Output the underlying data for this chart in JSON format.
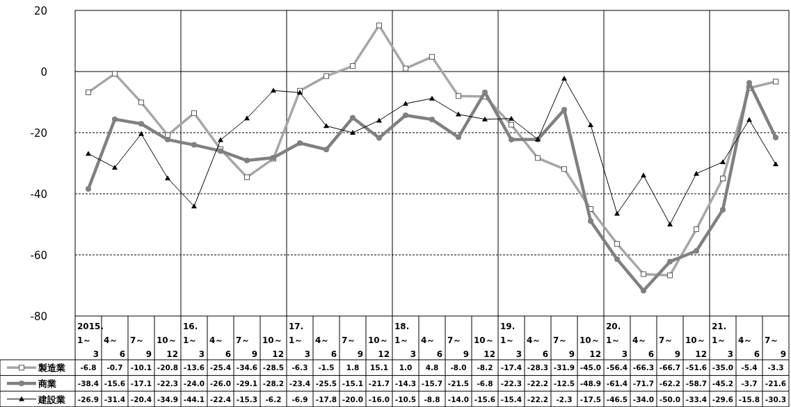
{
  "chart_data": {
    "type": "line",
    "categories": [
      "2015.\n1～\n3",
      "4～\n6",
      "7～\n9",
      "10～\n12",
      "16.\n1～\n3",
      "4～\n6",
      "7～\n9",
      "10～\n12",
      "17.\n1～\n3",
      "4～\n6",
      "7～\n9",
      "10～\n12",
      "18.\n1～\n3",
      "4～\n6",
      "7～\n9",
      "10～\n12",
      "19.\n1～\n3",
      "4～\n6",
      "7～\n9",
      "10～\n12",
      "20.\n1～\n3",
      "4～\n6",
      "7～\n9",
      "10～\n12",
      "21.\n1～\n3",
      "4～\n6",
      "7～\n9"
    ],
    "series": [
      {
        "name": "製造業",
        "color": "#a6a6a6",
        "marker": "square",
        "values": [
          -6.8,
          -0.7,
          -10.1,
          -20.8,
          -13.6,
          -25.4,
          -34.6,
          -28.5,
          -6.3,
          -1.5,
          1.8,
          15.1,
          1.0,
          4.8,
          -8.0,
          -8.2,
          -17.4,
          -28.3,
          -31.9,
          -45.0,
          -56.4,
          -66.3,
          -66.7,
          -51.6,
          -35.0,
          -5.4,
          -3.3
        ],
        "value_labels": [
          "-6.8",
          "-0.7",
          "-10.1",
          "-20.8",
          "-13.6",
          "-25.4",
          "-34.6",
          "-28.5",
          "-6.3",
          "-1.5",
          "1.8",
          "15.1",
          "1.0",
          "4.8",
          "-8.0",
          "-8.2",
          "-17.4",
          "-28.3",
          "-31.9",
          "-45.0",
          "-56.4",
          "-66.3",
          "-66.7",
          "-51.6",
          "-35.0",
          "-5.4",
          "-3.3"
        ]
      },
      {
        "name": "商業",
        "color": "#808080",
        "marker": "circle",
        "values": [
          -38.4,
          -15.6,
          -17.1,
          -22.3,
          -24.0,
          -26.0,
          -29.1,
          -28.2,
          -23.4,
          -25.5,
          -15.1,
          -21.7,
          -14.3,
          -15.7,
          -21.5,
          -6.8,
          -22.3,
          -22.2,
          -12.5,
          -48.9,
          -61.4,
          -71.7,
          -62.2,
          -58.7,
          -45.2,
          -3.7,
          -21.6
        ],
        "value_labels": [
          "-38.4",
          "-15.6",
          "-17.1",
          "-22.3",
          "-24.0",
          "-26.0",
          "-29.1",
          "-28.2",
          "-23.4",
          "-25.5",
          "-15.1",
          "-21.7",
          "-14.3",
          "-15.7",
          "-21.5",
          "-6.8",
          "-22.3",
          "-22.2",
          "-12.5",
          "-48.9",
          "-61.4",
          "-71.7",
          "-62.2",
          "-58.7",
          "-45.2",
          "-3.7",
          "-21.6"
        ]
      },
      {
        "name": "建設業",
        "color": "#000000",
        "marker": "triangle",
        "values": [
          -26.9,
          -31.4,
          -20.4,
          -34.9,
          -44.1,
          -22.4,
          -15.3,
          -6.2,
          -6.9,
          -17.8,
          -20.0,
          -16.0,
          -10.5,
          -8.8,
          -14.0,
          -15.6,
          -15.4,
          -22.2,
          -2.3,
          -17.5,
          -46.5,
          -34.0,
          -50.0,
          -33.4,
          -29.6,
          -15.8,
          -30.3
        ],
        "value_labels": [
          "-26.9",
          "-31.4",
          "-20.4",
          "-34.9",
          "-44.1",
          "-22.4",
          "-15.3",
          "-6.2",
          "-6.9",
          "-17.8",
          "-20.0",
          "-16.0",
          "-10.5",
          "-8.8",
          "-14.0",
          "-15.6",
          "-15.4",
          "-22.2",
          "-2.3",
          "-17.5",
          "-46.5",
          "-34.0",
          "-50.0",
          "-33.4",
          "-29.6",
          "-15.8",
          "-30.3"
        ]
      }
    ],
    "ylim": [
      -80,
      20
    ],
    "yticks": [
      -80,
      -60,
      -40,
      -20,
      0,
      20
    ],
    "grid": "y",
    "legend": "bottom"
  }
}
